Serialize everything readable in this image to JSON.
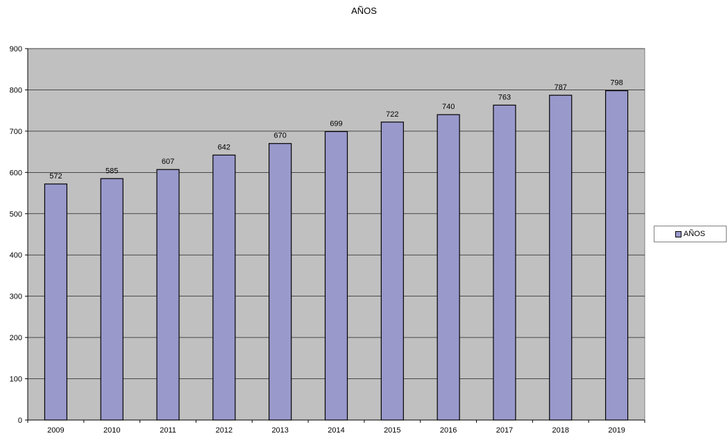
{
  "chart_data": {
    "type": "bar",
    "title": "AÑOS",
    "xlabel": "",
    "ylabel": "",
    "categories": [
      "2009",
      "2010",
      "2011",
      "2012",
      "2013",
      "2014",
      "2015",
      "2016",
      "2017",
      "2018",
      "2019"
    ],
    "series": [
      {
        "name": "AÑOS",
        "values": [
          572,
          585,
          607,
          642,
          670,
          699,
          722,
          740,
          763,
          787,
          798
        ]
      }
    ],
    "ylim": [
      0,
      900
    ],
    "yticks": [
      0,
      100,
      200,
      300,
      400,
      500,
      600,
      700,
      800,
      900
    ],
    "grid": true,
    "data_labels": true,
    "legend_position": "right",
    "colors": {
      "bar": "#9999cc",
      "plot_bg": "#c0c0c0",
      "grid": "#000000"
    }
  }
}
